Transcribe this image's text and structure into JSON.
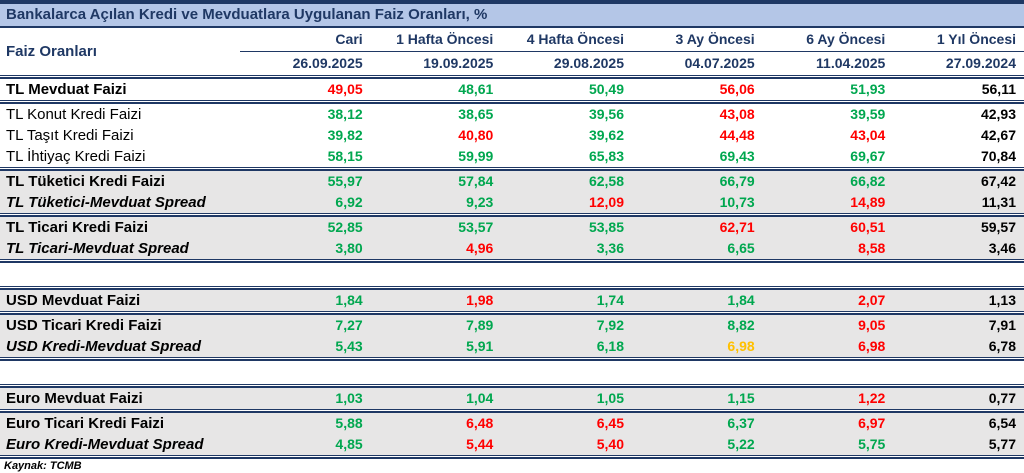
{
  "title": "Bankalarca Açılan Kredi ve Mevduatlara Uygulanan Faiz Oranları, %",
  "colors": {
    "green": "#00A74F",
    "red": "#FF0000",
    "orange": "#FFC000",
    "black": "#000000",
    "navy": "#1F3864",
    "title_bg": "#B4C6E7",
    "band_gray": "#E7E6E6"
  },
  "table": {
    "row_header": "Faiz Oranları",
    "columns": [
      {
        "label": "Cari",
        "date": "26.09.2025"
      },
      {
        "label": "1 Hafta Öncesi",
        "date": "19.09.2025"
      },
      {
        "label": "4 Hafta Öncesi",
        "date": "29.08.2025"
      },
      {
        "label": "3 Ay Öncesi",
        "date": "04.07.2025"
      },
      {
        "label": "6 Ay Öncesi",
        "date": "11.04.2025"
      },
      {
        "label": "1 Yıl Öncesi",
        "date": "27.09.2024"
      }
    ],
    "groups": [
      {
        "shade": "white",
        "rows": [
          {
            "label": "TL Mevduat Faizi",
            "emphasis": "bold",
            "values": [
              "49,05",
              "48,61",
              "50,49",
              "56,06",
              "51,93",
              "56,11"
            ],
            "colors": [
              "red",
              "green",
              "green",
              "red",
              "green",
              "black"
            ]
          }
        ]
      },
      {
        "shade": "white",
        "rows": [
          {
            "label": "TL Konut Kredi Faizi",
            "emphasis": "normal",
            "values": [
              "38,12",
              "38,65",
              "39,56",
              "43,08",
              "39,59",
              "42,93"
            ],
            "colors": [
              "green",
              "green",
              "green",
              "red",
              "green",
              "black"
            ]
          },
          {
            "label": "TL Taşıt Kredi Faizi",
            "emphasis": "normal",
            "values": [
              "39,82",
              "40,80",
              "39,62",
              "44,48",
              "43,04",
              "42,67"
            ],
            "colors": [
              "green",
              "red",
              "green",
              "red",
              "red",
              "black"
            ]
          },
          {
            "label": "TL İhtiyaç Kredi Faizi",
            "emphasis": "normal",
            "values": [
              "58,15",
              "59,99",
              "65,83",
              "69,43",
              "69,67",
              "70,84"
            ],
            "colors": [
              "green",
              "green",
              "green",
              "green",
              "green",
              "black"
            ]
          }
        ]
      },
      {
        "shade": "gray",
        "rows": [
          {
            "label": "TL Tüketici Kredi Faizi",
            "emphasis": "bold",
            "values": [
              "55,97",
              "57,84",
              "62,58",
              "66,79",
              "66,82",
              "67,42"
            ],
            "colors": [
              "green",
              "green",
              "green",
              "green",
              "green",
              "black"
            ]
          },
          {
            "label": "TL Tüketici-Mevduat Spread",
            "emphasis": "bold-italic",
            "values": [
              "6,92",
              "9,23",
              "12,09",
              "10,73",
              "14,89",
              "11,31"
            ],
            "colors": [
              "green",
              "green",
              "red",
              "green",
              "red",
              "black"
            ]
          }
        ]
      },
      {
        "shade": "gray",
        "rows": [
          {
            "label": "TL Ticari Kredi Faizi",
            "emphasis": "bold",
            "values": [
              "52,85",
              "53,57",
              "53,85",
              "62,71",
              "60,51",
              "59,57"
            ],
            "colors": [
              "green",
              "green",
              "green",
              "red",
              "red",
              "black"
            ]
          },
          {
            "label": "TL Ticari-Mevduat Spread",
            "emphasis": "bold-italic",
            "values": [
              "3,80",
              "4,96",
              "3,36",
              "6,65",
              "8,58",
              "3,46"
            ],
            "colors": [
              "green",
              "red",
              "green",
              "green",
              "red",
              "black"
            ]
          }
        ]
      },
      {
        "spacer": true
      },
      {
        "shade": "gray",
        "rows": [
          {
            "label": "USD Mevduat Faizi",
            "emphasis": "bold",
            "values": [
              "1,84",
              "1,98",
              "1,74",
              "1,84",
              "2,07",
              "1,13"
            ],
            "colors": [
              "green",
              "red",
              "green",
              "green",
              "red",
              "black"
            ]
          }
        ]
      },
      {
        "shade": "gray",
        "rows": [
          {
            "label": "USD Ticari Kredi Faizi",
            "emphasis": "bold",
            "values": [
              "7,27",
              "7,89",
              "7,92",
              "8,82",
              "9,05",
              "7,91"
            ],
            "colors": [
              "green",
              "green",
              "green",
              "green",
              "red",
              "black"
            ]
          },
          {
            "label": "USD Kredi-Mevduat Spread",
            "emphasis": "bold-italic",
            "values": [
              "5,43",
              "5,91",
              "6,18",
              "6,98",
              "6,98",
              "6,78"
            ],
            "colors": [
              "green",
              "green",
              "green",
              "orange",
              "red",
              "black"
            ]
          }
        ]
      },
      {
        "spacer": true
      },
      {
        "shade": "gray",
        "rows": [
          {
            "label": "Euro Mevduat Faizi",
            "emphasis": "bold",
            "values": [
              "1,03",
              "1,04",
              "1,05",
              "1,15",
              "1,22",
              "0,77"
            ],
            "colors": [
              "green",
              "green",
              "green",
              "green",
              "red",
              "black"
            ]
          }
        ]
      },
      {
        "shade": "gray",
        "rows": [
          {
            "label": "Euro Ticari Kredi Faizi",
            "emphasis": "bold",
            "values": [
              "5,88",
              "6,48",
              "6,45",
              "6,37",
              "6,97",
              "6,54"
            ],
            "colors": [
              "green",
              "red",
              "red",
              "green",
              "red",
              "black"
            ]
          },
          {
            "label": "Euro Kredi-Mevduat Spread",
            "emphasis": "bold-italic",
            "values": [
              "4,85",
              "5,44",
              "5,40",
              "5,22",
              "5,75",
              "5,77"
            ],
            "colors": [
              "green",
              "red",
              "red",
              "green",
              "green",
              "black"
            ]
          }
        ]
      }
    ]
  },
  "footer": {
    "source": "Kaynak: TCMB"
  }
}
